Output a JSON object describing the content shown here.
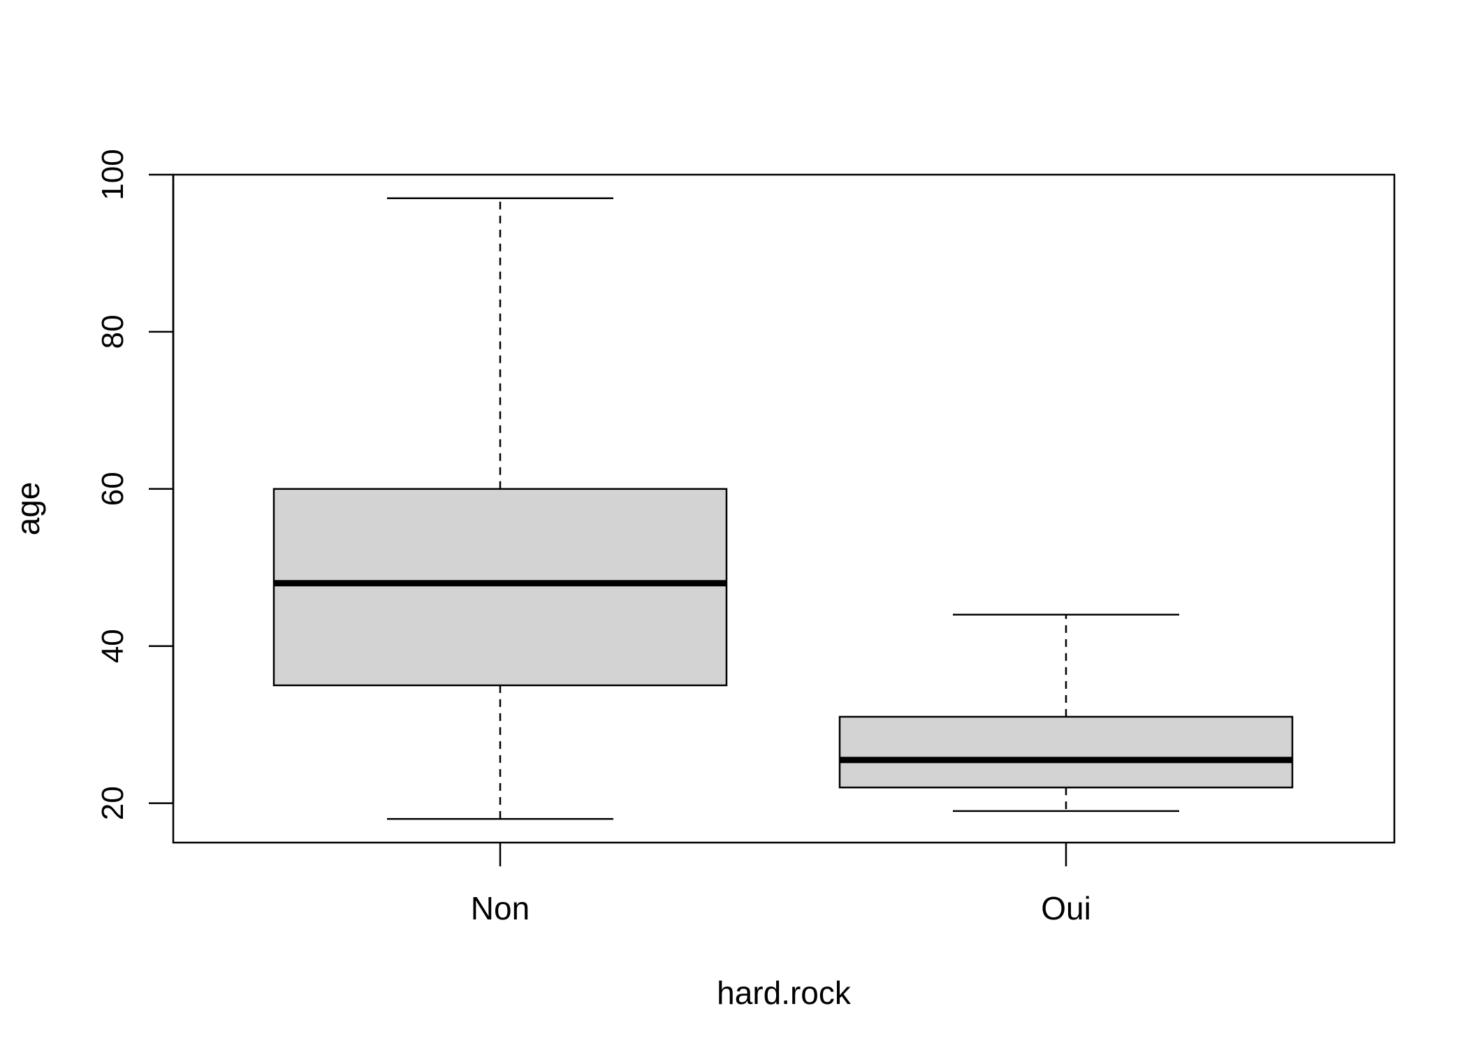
{
  "chart_data": {
    "type": "boxplot",
    "title": "",
    "xlabel": "hard.rock",
    "ylabel": "age",
    "ylim": [
      15,
      100
    ],
    "yticks": [
      20,
      40,
      60,
      80,
      100
    ],
    "categories": [
      "Non",
      "Oui"
    ],
    "boxes": [
      {
        "category": "Non",
        "whisker_low": 18,
        "q1": 35,
        "median": 48,
        "q3": 60,
        "whisker_high": 97
      },
      {
        "category": "Oui",
        "whisker_low": 19,
        "q1": 22,
        "median": 25.5,
        "q3": 31,
        "whisker_high": 44
      }
    ],
    "grid": false,
    "legend": "none",
    "colors": {
      "box_fill": "#d3d3d3",
      "stroke": "#000000",
      "background": "#ffffff"
    }
  }
}
